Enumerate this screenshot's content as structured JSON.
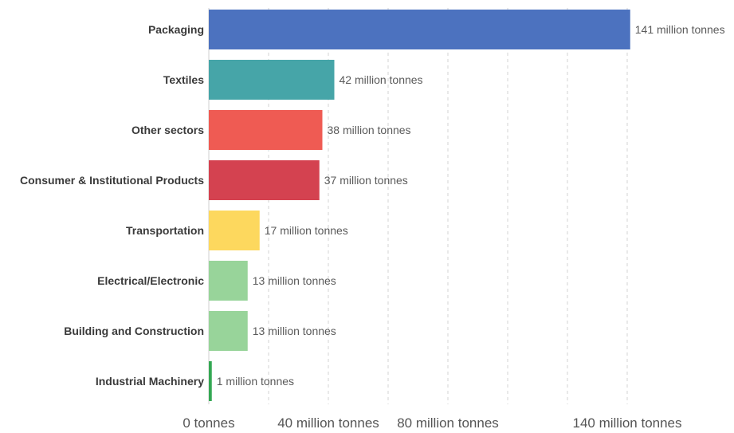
{
  "chart_data": {
    "type": "bar",
    "orientation": "horizontal",
    "categories": [
      "Packaging",
      "Textiles",
      "Other sectors",
      "Consumer & Institutional Products",
      "Transportation",
      "Electrical/Electronic",
      "Building and Construction",
      "Industrial Machinery"
    ],
    "values": [
      141,
      42,
      38,
      37,
      17,
      13,
      13,
      1
    ],
    "value_labels": [
      "141 million tonnes",
      "42 million tonnes",
      "38 million tonnes",
      "37 million tonnes",
      "17 million tonnes",
      "13 million tonnes",
      "13 million tonnes",
      "1 million tonnes"
    ],
    "colors": [
      "#4c72bf",
      "#46a5a8",
      "#ef5b53",
      "#d44250",
      "#fdd85e",
      "#98d49a",
      "#98d49a",
      "#34a853"
    ],
    "xlim": [
      0,
      141
    ],
    "x_ticks": [
      0,
      40,
      80,
      140
    ],
    "x_tick_labels": [
      "0 tonnes",
      "40 million tonnes",
      "80 million tonnes",
      "140 million tonnes"
    ],
    "grid": true,
    "title": "",
    "xlabel": "",
    "ylabel": ""
  }
}
